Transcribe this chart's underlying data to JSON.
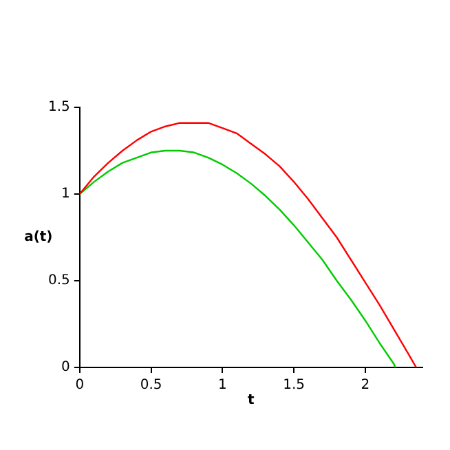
{
  "chart_data": {
    "type": "line",
    "xlabel": "t",
    "ylabel": "a(t)",
    "xlim": [
      0,
      2.4
    ],
    "ylim": [
      0,
      1.5
    ],
    "xticks": [
      0,
      0.5,
      1,
      1.5,
      2
    ],
    "yticks": [
      0,
      0.5,
      1,
      1.5
    ],
    "grid": false,
    "legend": false,
    "marker": "none",
    "line_style": "solid",
    "series": [
      {
        "color": "#ff0000",
        "x": [
          0,
          0.1,
          0.2,
          0.3,
          0.4,
          0.5,
          0.6,
          0.7,
          0.8,
          0.9,
          1,
          1.1,
          1.2,
          1.3,
          1.4,
          1.5,
          1.6,
          1.7,
          1.8,
          1.9,
          2,
          2.1,
          2.2,
          2.3,
          2.356
        ],
        "values": [
          1,
          1.1,
          1.18,
          1.25,
          1.31,
          1.36,
          1.39,
          1.41,
          1.41,
          1.41,
          1.38,
          1.35,
          1.29,
          1.23,
          1.16,
          1.07,
          0.97,
          0.86,
          0.75,
          0.62,
          0.49,
          0.36,
          0.22,
          0.08,
          0
        ]
      },
      {
        "color": "#00cc00",
        "x": [
          0,
          0.1,
          0.2,
          0.3,
          0.4,
          0.5,
          0.6,
          0.7,
          0.8,
          0.9,
          1,
          1.1,
          1.2,
          1.3,
          1.4,
          1.5,
          1.6,
          1.7,
          1.8,
          1.9,
          2,
          2.1,
          2.2,
          2.21
        ],
        "values": [
          1,
          1.07,
          1.13,
          1.18,
          1.21,
          1.24,
          1.25,
          1.25,
          1.24,
          1.21,
          1.17,
          1.12,
          1.06,
          0.99,
          0.91,
          0.82,
          0.72,
          0.62,
          0.5,
          0.39,
          0.27,
          0.14,
          0.02,
          0
        ]
      }
    ]
  }
}
